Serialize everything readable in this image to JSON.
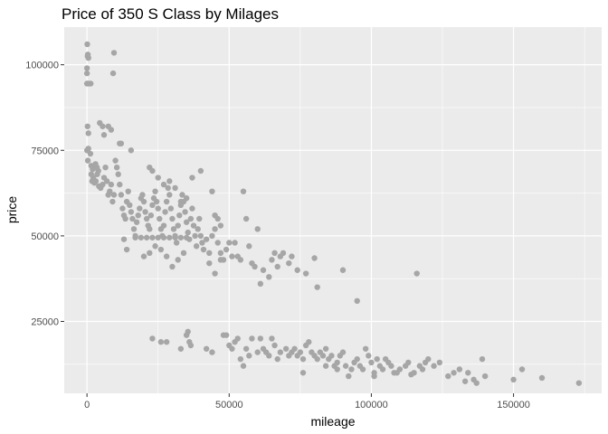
{
  "chart_data": {
    "type": "scatter",
    "title": "Price of 350 S Class by Milages",
    "xlabel": "mileage",
    "ylabel": "price",
    "xlim": [
      -8000,
      181000
    ],
    "ylim": [
      4000,
      111000
    ],
    "x_ticks": [
      0,
      50000,
      100000,
      150000
    ],
    "x_tick_labels": [
      "0",
      "50000",
      "100000",
      "150000"
    ],
    "y_ticks": [
      25000,
      50000,
      75000,
      100000
    ],
    "y_tick_labels": [
      "25000",
      "50000",
      "75000",
      "100000"
    ],
    "grid": true,
    "legend": "none",
    "colors": {
      "panel": "#ebebeb",
      "grid": "#ffffff",
      "point": "#a6a6a6"
    },
    "points": [
      [
        100,
        106000
      ],
      [
        300,
        103000
      ],
      [
        200,
        102500
      ],
      [
        500,
        102000
      ],
      [
        0,
        99000
      ],
      [
        0,
        97500
      ],
      [
        0,
        94500
      ],
      [
        300,
        94500
      ],
      [
        800,
        94500
      ],
      [
        1300,
        94500
      ],
      [
        9500,
        103500
      ],
      [
        9200,
        97500
      ],
      [
        200,
        82000
      ],
      [
        500,
        80000
      ],
      [
        4500,
        83000
      ],
      [
        5500,
        82000
      ],
      [
        7500,
        82000
      ],
      [
        6000,
        79500
      ],
      [
        8500,
        81000
      ],
      [
        11500,
        77000
      ],
      [
        12000,
        77000
      ],
      [
        15500,
        75000
      ],
      [
        0,
        75000
      ],
      [
        300,
        72000
      ],
      [
        500,
        75500
      ],
      [
        1200,
        74000
      ],
      [
        1500,
        70500
      ],
      [
        2000,
        69500
      ],
      [
        2500,
        70000
      ],
      [
        3000,
        71000
      ],
      [
        3500,
        70000
      ],
      [
        4000,
        69000
      ],
      [
        1500,
        68000
      ],
      [
        1800,
        66000
      ],
      [
        2200,
        67000
      ],
      [
        2600,
        65500
      ],
      [
        3100,
        66000
      ],
      [
        3600,
        68000
      ],
      [
        4200,
        64500
      ],
      [
        4800,
        64000
      ],
      [
        5500,
        65000
      ],
      [
        6000,
        67000
      ],
      [
        6500,
        70000
      ],
      [
        7000,
        66000
      ],
      [
        7500,
        62000
      ],
      [
        8000,
        63000
      ],
      [
        8500,
        65000
      ],
      [
        9000,
        60000
      ],
      [
        9500,
        62000
      ],
      [
        10000,
        72000
      ],
      [
        10500,
        70000
      ],
      [
        11000,
        68000
      ],
      [
        11500,
        65000
      ],
      [
        12000,
        62000
      ],
      [
        12500,
        58000
      ],
      [
        13000,
        56000
      ],
      [
        13500,
        55000
      ],
      [
        14000,
        60000
      ],
      [
        14500,
        63000
      ],
      [
        15000,
        59000
      ],
      [
        15500,
        57000
      ],
      [
        16000,
        55000
      ],
      [
        16500,
        52000
      ],
      [
        17000,
        50000
      ],
      [
        17500,
        54000
      ],
      [
        18000,
        56000
      ],
      [
        18500,
        58000
      ],
      [
        19000,
        61000
      ],
      [
        19500,
        62000
      ],
      [
        20000,
        60000
      ],
      [
        20500,
        57000
      ],
      [
        21000,
        55000
      ],
      [
        21500,
        53000
      ],
      [
        22000,
        52000
      ],
      [
        22500,
        56000
      ],
      [
        23000,
        59000
      ],
      [
        23500,
        61000
      ],
      [
        24000,
        63000
      ],
      [
        24500,
        60000
      ],
      [
        25000,
        58000
      ],
      [
        25500,
        55000
      ],
      [
        26000,
        52000
      ],
      [
        26500,
        50000
      ],
      [
        27000,
        53000
      ],
      [
        27500,
        57000
      ],
      [
        28000,
        60000
      ],
      [
        28500,
        64000
      ],
      [
        29000,
        62000
      ],
      [
        29500,
        58000
      ],
      [
        30000,
        55000
      ],
      [
        30500,
        52000
      ],
      [
        31000,
        50000
      ],
      [
        31500,
        48000
      ],
      [
        32000,
        53000
      ],
      [
        32500,
        56000
      ],
      [
        33000,
        59000
      ],
      [
        33500,
        62000
      ],
      [
        34000,
        60000
      ],
      [
        34500,
        57000
      ],
      [
        35000,
        54000
      ],
      [
        35500,
        51000
      ],
      [
        36000,
        49000
      ],
      [
        36500,
        55000
      ],
      [
        37000,
        58000
      ],
      [
        37500,
        53000
      ],
      [
        38000,
        50000
      ],
      [
        38500,
        47000
      ],
      [
        39000,
        52000
      ],
      [
        39500,
        55000
      ],
      [
        40000,
        50000
      ],
      [
        40500,
        48000
      ],
      [
        41000,
        46000
      ],
      [
        42000,
        49000
      ],
      [
        43000,
        45000
      ],
      [
        44000,
        50000
      ],
      [
        45000,
        52000
      ],
      [
        46000,
        48000
      ],
      [
        47000,
        45000
      ],
      [
        48000,
        43000
      ],
      [
        49000,
        46000
      ],
      [
        50000,
        48000
      ],
      [
        51000,
        44000
      ],
      [
        22000,
        70000
      ],
      [
        23000,
        69000
      ],
      [
        25000,
        67000
      ],
      [
        27000,
        65000
      ],
      [
        29000,
        66000
      ],
      [
        31000,
        64000
      ],
      [
        33000,
        60000
      ],
      [
        35000,
        61000
      ],
      [
        37000,
        67000
      ],
      [
        40000,
        69000
      ],
      [
        13000,
        49000
      ],
      [
        14000,
        46000
      ],
      [
        17000,
        49500
      ],
      [
        19000,
        49500
      ],
      [
        21000,
        49500
      ],
      [
        23000,
        49500
      ],
      [
        25000,
        49500
      ],
      [
        27000,
        49500
      ],
      [
        29000,
        49500
      ],
      [
        31000,
        49500
      ],
      [
        33000,
        49500
      ],
      [
        35000,
        49500
      ],
      [
        20000,
        44000
      ],
      [
        22000,
        45000
      ],
      [
        24000,
        47000
      ],
      [
        26000,
        46000
      ],
      [
        28000,
        44000
      ],
      [
        30000,
        41000
      ],
      [
        32000,
        43000
      ],
      [
        34000,
        45000
      ],
      [
        44000,
        63000
      ],
      [
        45000,
        56000
      ],
      [
        46000,
        55000
      ],
      [
        47000,
        53000
      ],
      [
        43000,
        42000
      ],
      [
        45000,
        39000
      ],
      [
        47000,
        43000
      ],
      [
        52000,
        48000
      ],
      [
        53000,
        44000
      ],
      [
        54000,
        43000
      ],
      [
        55000,
        63000
      ],
      [
        56000,
        55000
      ],
      [
        57000,
        47000
      ],
      [
        58000,
        42000
      ],
      [
        59000,
        41000
      ],
      [
        60000,
        52000
      ],
      [
        61000,
        36000
      ],
      [
        62000,
        40000
      ],
      [
        64000,
        38000
      ],
      [
        65000,
        43000
      ],
      [
        66000,
        45000
      ],
      [
        67000,
        41000
      ],
      [
        68000,
        44000
      ],
      [
        69000,
        45000
      ],
      [
        71000,
        42000
      ],
      [
        72000,
        44000
      ],
      [
        74000,
        40000
      ],
      [
        77000,
        39000
      ],
      [
        80000,
        43500
      ],
      [
        81000,
        35000
      ],
      [
        90000,
        40000
      ],
      [
        95000,
        31000
      ],
      [
        116000,
        39000
      ],
      [
        23000,
        20000
      ],
      [
        26000,
        19000
      ],
      [
        28000,
        19000
      ],
      [
        35000,
        21000
      ],
      [
        35500,
        22000
      ],
      [
        36000,
        19000
      ],
      [
        36500,
        18000
      ],
      [
        33000,
        17000
      ],
      [
        42000,
        17000
      ],
      [
        44000,
        16000
      ],
      [
        48000,
        21000
      ],
      [
        49000,
        21000
      ],
      [
        50000,
        18000
      ],
      [
        51000,
        17000
      ],
      [
        52000,
        19000
      ],
      [
        53000,
        20000
      ],
      [
        54000,
        14000
      ],
      [
        55000,
        12000
      ],
      [
        56000,
        17000
      ],
      [
        57000,
        15000
      ],
      [
        58000,
        20000
      ],
      [
        60000,
        16000
      ],
      [
        61000,
        20000
      ],
      [
        62000,
        17000
      ],
      [
        63000,
        16000
      ],
      [
        64000,
        15000
      ],
      [
        65000,
        20000
      ],
      [
        66000,
        18000
      ],
      [
        67000,
        14000
      ],
      [
        68000,
        16000
      ],
      [
        70000,
        17000
      ],
      [
        71000,
        15000
      ],
      [
        72000,
        16000
      ],
      [
        73000,
        17000
      ],
      [
        74000,
        15000
      ],
      [
        75000,
        16000
      ],
      [
        76000,
        14000
      ],
      [
        77000,
        18000
      ],
      [
        78000,
        19000
      ],
      [
        79000,
        16000
      ],
      [
        80000,
        15000
      ],
      [
        81000,
        14000
      ],
      [
        82000,
        16000
      ],
      [
        83000,
        15000
      ],
      [
        84000,
        17000
      ],
      [
        85000,
        14000
      ],
      [
        86000,
        15000
      ],
      [
        87000,
        12000
      ],
      [
        88000,
        13000
      ],
      [
        89000,
        15000
      ],
      [
        90000,
        16000
      ],
      [
        91000,
        12000
      ],
      [
        92000,
        9000
      ],
      [
        93000,
        11000
      ],
      [
        94000,
        13000
      ],
      [
        95000,
        14000
      ],
      [
        96000,
        12000
      ],
      [
        97000,
        11000
      ],
      [
        98000,
        17000
      ],
      [
        99000,
        15000
      ],
      [
        100000,
        13000
      ],
      [
        101000,
        10000
      ],
      [
        102000,
        14000
      ],
      [
        103000,
        12000
      ],
      [
        104000,
        11000
      ],
      [
        105000,
        14000
      ],
      [
        106000,
        13000
      ],
      [
        107000,
        12000
      ],
      [
        108000,
        10000
      ],
      [
        110000,
        11000
      ],
      [
        112000,
        12000
      ],
      [
        113000,
        13000
      ],
      [
        115000,
        10000
      ],
      [
        117000,
        12000
      ],
      [
        118000,
        11000
      ],
      [
        119000,
        13000
      ],
      [
        120000,
        14000
      ],
      [
        122000,
        12000
      ],
      [
        124000,
        13000
      ],
      [
        127000,
        9000
      ],
      [
        129000,
        10000
      ],
      [
        131000,
        11000
      ],
      [
        134000,
        10000
      ],
      [
        136000,
        8000
      ],
      [
        137000,
        7000
      ],
      [
        139000,
        14000
      ],
      [
        140000,
        9000
      ],
      [
        150000,
        8000
      ],
      [
        153000,
        11000
      ],
      [
        160000,
        8500
      ],
      [
        173000,
        7000
      ],
      [
        76000,
        10000
      ],
      [
        84000,
        12000
      ],
      [
        88000,
        11000
      ],
      [
        101000,
        9000
      ],
      [
        109000,
        10000
      ],
      [
        114000,
        9500
      ],
      [
        133000,
        7500
      ]
    ]
  }
}
